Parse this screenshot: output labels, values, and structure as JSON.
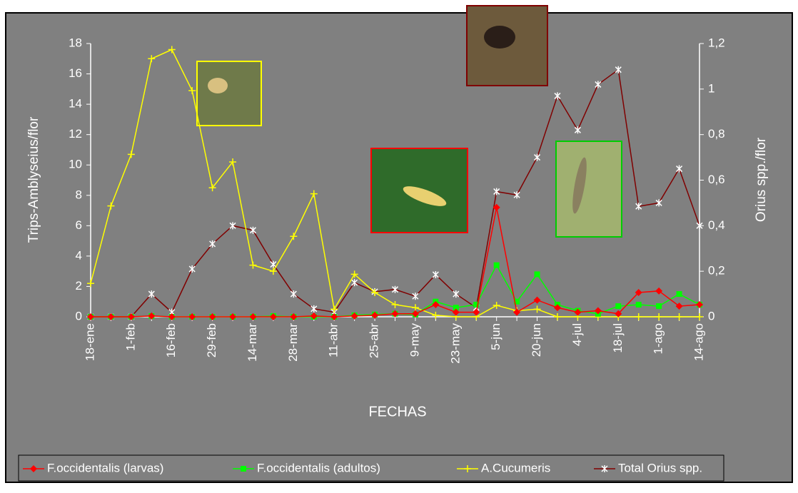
{
  "chart_data": {
    "type": "line",
    "xlabel": "FECHAS",
    "ylabel": "Trips-Amblyseius/flor",
    "y2label": "Orius spp./flor",
    "categories": [
      "18-ene",
      null,
      "1-feb",
      null,
      "16-feb",
      null,
      "29-feb",
      null,
      "14-mar",
      null,
      "28-mar",
      null,
      "11-abr",
      null,
      "25-abr",
      null,
      "9-may",
      null,
      "23-may",
      null,
      "5-jun",
      null,
      "20-jun",
      null,
      "4-jul",
      null,
      "18-jul",
      null,
      "1-ago",
      null,
      "14-ago"
    ],
    "ylim": [
      0,
      18
    ],
    "yticks": [
      0,
      2,
      4,
      6,
      8,
      10,
      12,
      14,
      16,
      18
    ],
    "y2lim": [
      0,
      1.2
    ],
    "y2ticks": [
      0,
      {
        "value": 0.2,
        "label": "0,2"
      },
      {
        "value": 0.4,
        "label": "0,4"
      },
      {
        "value": 0.6,
        "label": "0,6"
      },
      {
        "value": 0.8,
        "label": "0,8"
      },
      1,
      {
        "value": 1.2,
        "label": "1,2"
      }
    ],
    "series": [
      {
        "name": "F.occidentalis (larvas)",
        "color": "#ff0000",
        "marker": "diamond",
        "values": [
          0,
          0,
          0,
          0.05,
          0,
          0,
          0,
          0,
          0,
          0,
          0,
          0.05,
          0,
          0.05,
          0.1,
          0.2,
          0.2,
          0.8,
          0.3,
          0.3,
          7.2,
          0.3,
          1.1,
          0.6,
          0.3,
          0.4,
          0.2,
          1.6,
          1.7,
          0.7,
          0.8
        ]
      },
      {
        "name": "F.occidentalis (adultos)",
        "color": "#00ff00",
        "marker": "square",
        "values": [
          0,
          0,
          0,
          0.05,
          0,
          0,
          0,
          0,
          0,
          0.05,
          0,
          0,
          0,
          0.1,
          0.15,
          0.2,
          0.15,
          1.0,
          0.6,
          0.8,
          3.4,
          1.0,
          2.8,
          0.8,
          0.4,
          0.2,
          0.7,
          0.8,
          0.7,
          1.5,
          0.8
        ]
      },
      {
        "name": "A.Cucumeris",
        "color": "#ffff00",
        "marker": "plus",
        "values": [
          2.2,
          7.3,
          10.7,
          17.0,
          17.6,
          14.9,
          8.5,
          10.2,
          3.4,
          3.0,
          5.3,
          8.1,
          0.5,
          2.8,
          1.6,
          0.8,
          0.6,
          0.1,
          0,
          0,
          0.75,
          0.4,
          0.5,
          0,
          0,
          0,
          0,
          0,
          0,
          0,
          0
        ]
      },
      {
        "name": "Total Orius spp.",
        "color": "#800000",
        "marker": "asterisk",
        "axis": "y2",
        "values": [
          0,
          0,
          0,
          0.1,
          0.02,
          0.21,
          0.32,
          0.4,
          0.38,
          0.23,
          0.1,
          0.035,
          0.02,
          0.15,
          0.11,
          0.12,
          0.09,
          0.185,
          0.1,
          0.04,
          0.55,
          0.535,
          0.7,
          0.97,
          0.82,
          1.02,
          1.085,
          0.485,
          0.5,
          0.65,
          0.4
        ]
      }
    ]
  }
}
